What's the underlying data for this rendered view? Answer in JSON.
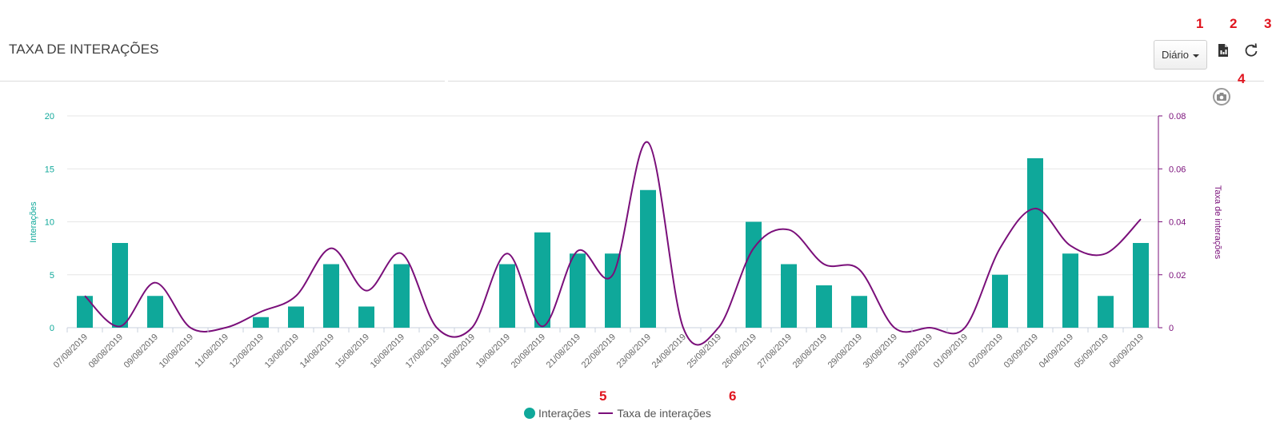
{
  "header": {
    "title": "TAXA DE INTERAÇÕES",
    "period_select": "Diário",
    "marks": [
      "1",
      "2",
      "3",
      "4",
      "5",
      "6"
    ]
  },
  "icons": {
    "export": "file-export-icon",
    "refresh": "refresh-icon",
    "camera": "camera-icon"
  },
  "colors": {
    "bars": "#0fa89a",
    "line": "#7a0f7a",
    "mark": "#e0141e"
  },
  "chart_data": {
    "type": "bar",
    "categories": [
      "07/08/2019",
      "08/08/2019",
      "09/08/2019",
      "10/08/2019",
      "11/08/2019",
      "12/08/2019",
      "13/08/2019",
      "14/08/2019",
      "15/08/2019",
      "16/08/2019",
      "17/08/2019",
      "18/08/2019",
      "19/08/2019",
      "20/08/2019",
      "21/08/2019",
      "22/08/2019",
      "23/08/2019",
      "24/08/2019",
      "25/08/2019",
      "26/08/2019",
      "27/08/2019",
      "28/08/2019",
      "29/08/2019",
      "30/08/2019",
      "31/08/2019",
      "01/09/2019",
      "02/09/2019",
      "03/09/2019",
      "04/09/2019",
      "05/09/2019",
      "06/09/2019"
    ],
    "series": [
      {
        "name": "Interações",
        "type": "bar",
        "axis": "left",
        "values": [
          3,
          8,
          3,
          0,
          0,
          1,
          2,
          6,
          2,
          6,
          0,
          0,
          6,
          9,
          7,
          7,
          13,
          0,
          0,
          10,
          6,
          4,
          3,
          0,
          0,
          0,
          5,
          16,
          7,
          3,
          8
        ]
      },
      {
        "name": "Taxa de interações",
        "type": "spline",
        "axis": "right",
        "values": [
          0.012,
          0.0005,
          0.017,
          0,
          0,
          0.006,
          0.012,
          0.03,
          0.014,
          0.028,
          0,
          0,
          0.028,
          0.0005,
          0.029,
          0.02,
          0.07,
          0,
          0,
          0.03,
          0.037,
          0.024,
          0.022,
          0,
          0,
          0,
          0.03,
          0.045,
          0.031,
          0.028,
          0.041
        ]
      }
    ],
    "y_left": {
      "label": "Interações",
      "ylim": [
        0,
        20
      ],
      "ticks": [
        "0",
        "5",
        "10",
        "15",
        "20"
      ]
    },
    "y_right": {
      "label": "Taxa de interações",
      "ylim": [
        0,
        0.08
      ],
      "ticks": [
        "0",
        "0.02",
        "0.04",
        "0.06",
        "0.08"
      ]
    },
    "grid": true,
    "legend": "bottom-center"
  }
}
